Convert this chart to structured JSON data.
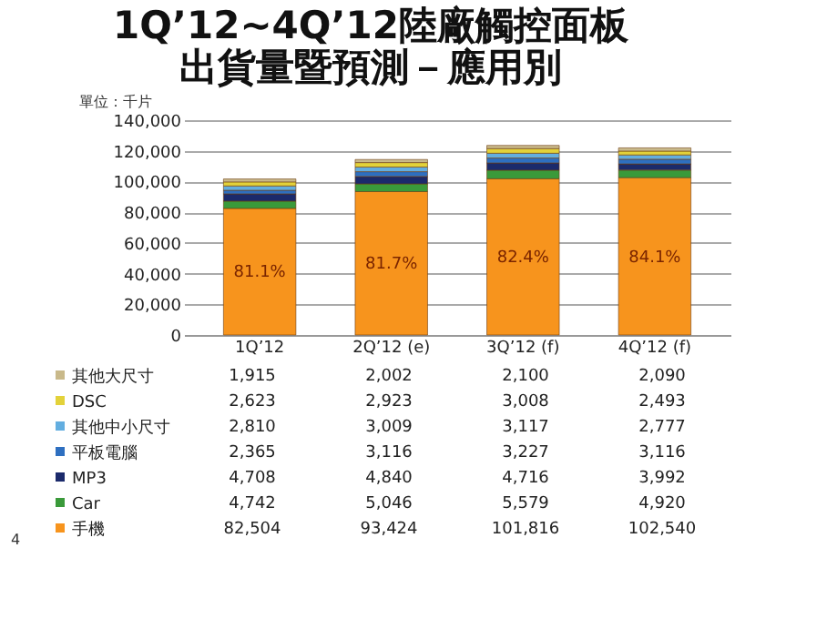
{
  "chart_data": {
    "type": "bar",
    "title": "1Q’12~4Q’12陸廠觸控面板",
    "subtitle": "出貨量暨預測－應用別",
    "ylabel": "單位：千片",
    "categories": [
      "1Q’12",
      "2Q’12 (e)",
      "3Q’12 (f)",
      "4Q’12 (f)"
    ],
    "stacked": true,
    "ylim": [
      0,
      140000
    ],
    "yticks": [
      {
        "value": 0,
        "label": "0"
      },
      {
        "value": 20000,
        "label": "20,000"
      },
      {
        "value": 40000,
        "label": "40,000"
      },
      {
        "value": 60000,
        "label": "60,000"
      },
      {
        "value": 80000,
        "label": "80,000"
      },
      {
        "value": 100000,
        "label": "100,000"
      },
      {
        "value": 120000,
        "label": "120,000"
      },
      {
        "value": 140000,
        "label": "140,000"
      }
    ],
    "grid": "y",
    "legend": "bottom",
    "series": [
      {
        "name": "手機",
        "color": "#f7941d",
        "values": [
          82504,
          93424,
          101816,
          102540
        ],
        "value_labels": [
          "82,504",
          "93,424",
          "101,816",
          "102,540"
        ]
      },
      {
        "name": "Car",
        "color": "#3a9a3a",
        "values": [
          4742,
          5046,
          5579,
          4920
        ],
        "value_labels": [
          "4,742",
          "5,046",
          "5,579",
          "4,920"
        ]
      },
      {
        "name": "MP3",
        "color": "#1b2a6b",
        "values": [
          4708,
          4840,
          4716,
          3992
        ],
        "value_labels": [
          "4,708",
          "4,840",
          "4,716",
          "3,992"
        ]
      },
      {
        "name": "平板電腦",
        "color": "#2e6fc0",
        "values": [
          2365,
          3116,
          3227,
          3116
        ],
        "value_labels": [
          "2,365",
          "3,116",
          "3,227",
          "3,116"
        ]
      },
      {
        "name": "其他中小尺寸",
        "color": "#63aee0",
        "values": [
          2810,
          3009,
          3117,
          2777
        ],
        "value_labels": [
          "2,810",
          "3,009",
          "3,117",
          "2,777"
        ]
      },
      {
        "name": "DSC",
        "color": "#e3d23a",
        "values": [
          2623,
          2923,
          3008,
          2493
        ],
        "value_labels": [
          "2,623",
          "2,923",
          "3,008",
          "2,493"
        ]
      },
      {
        "name": "其他大尺寸",
        "color": "#c9b98a",
        "values": [
          1915,
          2002,
          2100,
          2090
        ],
        "value_labels": [
          "1,915",
          "2,002",
          "2,100",
          "2,090"
        ]
      }
    ],
    "annotations": [
      "81.1%",
      "81.7%",
      "82.4%",
      "84.1%",
      "4"
    ]
  }
}
